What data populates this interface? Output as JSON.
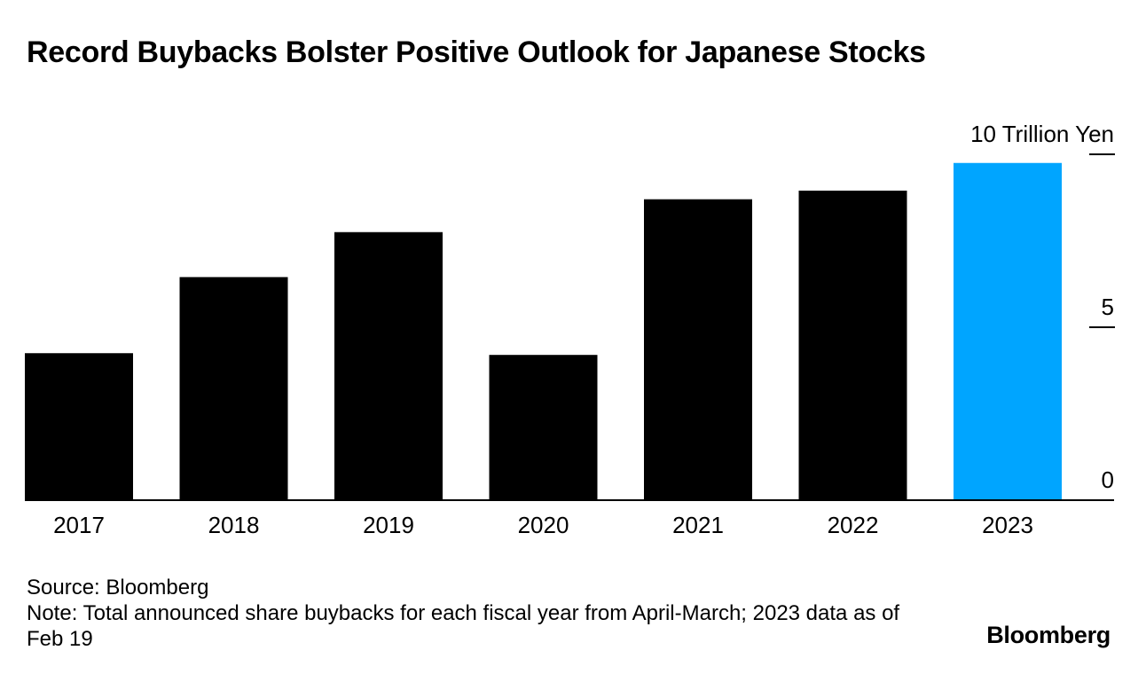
{
  "header": {
    "title": "Record Buybacks Bolster Positive Outlook for Japanese Stocks"
  },
  "chart_data": {
    "type": "bar",
    "title": "Record Buybacks Bolster Positive Outlook for Japanese Stocks",
    "categories": [
      "2017",
      "2018",
      "2019",
      "2020",
      "2021",
      "2022",
      "2023"
    ],
    "values": [
      4.25,
      6.45,
      7.75,
      4.2,
      8.7,
      8.95,
      9.75
    ],
    "highlight_index": 6,
    "colors": {
      "default": "#000000",
      "highlight": "#00a5ff"
    },
    "ylabel": "10 Trillion Yen",
    "ylim": [
      0,
      10
    ],
    "yticks": [
      "0",
      "5",
      "10 Trillion Yen"
    ],
    "y_axis_position": "right",
    "grid": false
  },
  "footer": {
    "source": "Source: Bloomberg",
    "note": "Note: Total announced share buybacks for each fiscal year from April-March; 2023 data as of Feb 19",
    "brand": "Bloomberg"
  }
}
